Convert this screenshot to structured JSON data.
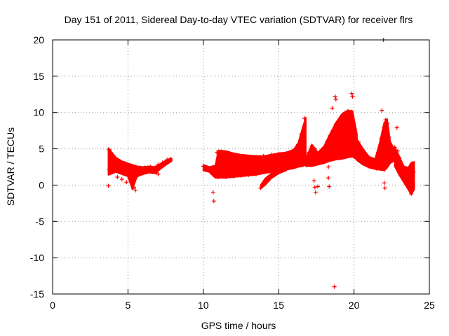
{
  "chart_data": {
    "type": "scatter",
    "title": "Day 151 of 2011, Sidereal Day-to-day VTEC variation (SDTVAR) for receiver flrs",
    "xlabel": "GPS time / hours",
    "ylabel": "SDTVAR / TECUs",
    "xlim": [
      0,
      25
    ],
    "ylim": [
      -15,
      20
    ],
    "xticks": [
      0,
      5,
      10,
      15,
      20,
      25
    ],
    "yticks": [
      -15,
      -10,
      -5,
      0,
      5,
      10,
      15,
      20
    ],
    "xtick_labels": [
      "0",
      "5",
      "10",
      "15",
      "20",
      "25"
    ],
    "ytick_labels": [
      "-15",
      "-10",
      "-5",
      "0",
      "5",
      "10",
      "15",
      "20"
    ],
    "grid": true,
    "marker": "+",
    "marker_color": "#ff0000",
    "series": [
      {
        "name": "SDTVAR",
        "points": [
          [
            3.75,
            4.9
          ],
          [
            3.85,
            4.5
          ],
          [
            4.0,
            3.8
          ],
          [
            4.2,
            3.4
          ],
          [
            4.5,
            3.2
          ],
          [
            4.8,
            3.0
          ],
          [
            5.0,
            2.8
          ],
          [
            5.2,
            2.6
          ],
          [
            5.5,
            2.5
          ],
          [
            5.8,
            2.4
          ],
          [
            6.1,
            2.4
          ],
          [
            6.5,
            2.5
          ],
          [
            6.8,
            2.4
          ],
          [
            7.0,
            2.8
          ],
          [
            7.3,
            3.1
          ],
          [
            7.6,
            3.5
          ],
          [
            7.8,
            3.6
          ],
          [
            3.75,
            2.2
          ],
          [
            3.9,
            2.0
          ],
          [
            4.1,
            2.0
          ],
          [
            4.4,
            1.9
          ],
          [
            4.7,
            1.6
          ],
          [
            5.0,
            1.4
          ],
          [
            5.2,
            0.6
          ],
          [
            5.4,
            -0.3
          ],
          [
            5.5,
            -0.7
          ],
          [
            5.6,
            1.2
          ],
          [
            5.9,
            1.6
          ],
          [
            6.2,
            1.8
          ],
          [
            6.6,
            1.8
          ],
          [
            6.9,
            1.7
          ],
          [
            7.0,
            1.5
          ],
          [
            3.7,
            -0.1
          ],
          [
            4.3,
            1.1
          ],
          [
            4.6,
            0.8
          ],
          [
            4.9,
            0.4
          ],
          [
            5.1,
            0.9
          ],
          [
            5.3,
            1.5
          ],
          [
            10.0,
            2.6
          ],
          [
            10.2,
            2.3
          ],
          [
            10.4,
            2.0
          ],
          [
            10.6,
            1.5
          ],
          [
            10.65,
            -1.0
          ],
          [
            10.7,
            -2.2
          ],
          [
            10.8,
            1.2
          ],
          [
            11.0,
            1.1
          ],
          [
            11.5,
            1.1
          ],
          [
            12.0,
            1.2
          ],
          [
            12.5,
            1.3
          ],
          [
            13.0,
            1.4
          ],
          [
            13.5,
            1.5
          ],
          [
            10.9,
            4.5
          ],
          [
            11.2,
            4.6
          ],
          [
            11.5,
            4.3
          ],
          [
            12.0,
            4.2
          ],
          [
            12.5,
            4.0
          ],
          [
            13.0,
            3.9
          ],
          [
            13.5,
            3.9
          ],
          [
            14.0,
            4.0
          ],
          [
            14.5,
            4.2
          ],
          [
            15.0,
            4.3
          ],
          [
            15.5,
            4.4
          ],
          [
            16.0,
            4.8
          ],
          [
            16.3,
            5.6
          ],
          [
            16.5,
            7.0
          ],
          [
            16.7,
            9.2
          ],
          [
            11.0,
            2.9
          ],
          [
            11.5,
            2.7
          ],
          [
            12.0,
            2.6
          ],
          [
            12.5,
            2.6
          ],
          [
            13.0,
            2.5
          ],
          [
            13.5,
            2.4
          ],
          [
            14.0,
            2.4
          ],
          [
            14.5,
            2.5
          ],
          [
            15.0,
            2.6
          ],
          [
            15.5,
            2.8
          ],
          [
            16.0,
            2.9
          ],
          [
            16.5,
            3.0
          ],
          [
            17.0,
            3.1
          ],
          [
            13.8,
            -0.4
          ],
          [
            14.0,
            0.2
          ],
          [
            14.2,
            0.7
          ],
          [
            14.5,
            1.2
          ],
          [
            14.8,
            1.6
          ],
          [
            15.0,
            1.9
          ],
          [
            15.3,
            2.1
          ],
          [
            16.8,
            3.5
          ],
          [
            17.0,
            4.5
          ],
          [
            17.2,
            5.4
          ],
          [
            17.4,
            5.0
          ],
          [
            17.5,
            4.4
          ],
          [
            17.6,
            3.8
          ],
          [
            17.35,
            0.6
          ],
          [
            17.4,
            -0.3
          ],
          [
            17.45,
            -1.0
          ],
          [
            17.6,
            -0.2
          ],
          [
            17.8,
            4.4
          ],
          [
            18.0,
            5.2
          ],
          [
            18.2,
            6.0
          ],
          [
            18.4,
            6.8
          ],
          [
            18.6,
            7.5
          ],
          [
            18.8,
            8.4
          ],
          [
            19.0,
            8.9
          ],
          [
            19.2,
            9.6
          ],
          [
            19.4,
            10.0
          ],
          [
            19.6,
            10.2
          ],
          [
            19.8,
            10.1
          ],
          [
            18.0,
            3.3
          ],
          [
            18.3,
            3.6
          ],
          [
            18.6,
            3.8
          ],
          [
            19.0,
            3.9
          ],
          [
            19.4,
            4.1
          ],
          [
            19.8,
            4.2
          ],
          [
            20.0,
            4.1
          ],
          [
            18.5,
            5.2
          ],
          [
            18.8,
            5.8
          ],
          [
            19.1,
            6.3
          ],
          [
            19.4,
            6.6
          ],
          [
            19.7,
            6.2
          ],
          [
            20.0,
            5.6
          ],
          [
            18.55,
            10.6
          ],
          [
            18.75,
            12.2
          ],
          [
            18.8,
            11.8
          ],
          [
            19.85,
            12.6
          ],
          [
            19.9,
            12.2
          ],
          [
            18.7,
            -14.0
          ],
          [
            18.3,
            2.5
          ],
          [
            18.3,
            1.0
          ],
          [
            18.35,
            -0.2
          ],
          [
            20.0,
            6.8
          ],
          [
            20.3,
            5.9
          ],
          [
            20.6,
            4.8
          ],
          [
            21.0,
            3.8
          ],
          [
            21.3,
            3.2
          ],
          [
            21.6,
            4.5
          ],
          [
            21.8,
            6.4
          ],
          [
            22.0,
            8.0
          ],
          [
            22.1,
            9.0
          ],
          [
            22.2,
            8.5
          ],
          [
            22.3,
            6.6
          ],
          [
            22.5,
            4.8
          ],
          [
            22.7,
            3.6
          ],
          [
            20.2,
            3.6
          ],
          [
            20.6,
            3.0
          ],
          [
            21.0,
            2.6
          ],
          [
            21.5,
            2.3
          ],
          [
            22.0,
            2.1
          ],
          [
            22.0,
            0.3
          ],
          [
            22.05,
            -0.4
          ],
          [
            21.85,
            10.3
          ],
          [
            21.95,
            20.0
          ],
          [
            22.85,
            7.9
          ],
          [
            22.7,
            5.2
          ],
          [
            22.9,
            4.7
          ],
          [
            23.0,
            3.8
          ],
          [
            23.2,
            2.8
          ],
          [
            23.4,
            1.8
          ],
          [
            23.5,
            1.0
          ],
          [
            23.6,
            0.2
          ],
          [
            23.7,
            -0.6
          ],
          [
            23.8,
            -1.2
          ],
          [
            23.9,
            -0.4
          ],
          [
            23.0,
            2.0
          ],
          [
            23.2,
            1.3
          ],
          [
            23.4,
            0.6
          ],
          [
            23.6,
            1.6
          ],
          [
            23.8,
            2.6
          ],
          [
            23.9,
            3.0
          ],
          [
            23.95,
            1.8
          ]
        ]
      }
    ],
    "bands": [
      {
        "x": [
          3.7,
          4.2,
          4.6,
          5.0,
          5.3,
          5.6,
          6.0,
          6.4,
          6.8,
          7.2,
          7.6,
          7.9
        ],
        "lo": [
          1.4,
          1.8,
          1.5,
          1.2,
          -0.6,
          1.2,
          1.5,
          1.7,
          1.6,
          2.3,
          2.9,
          3.3
        ],
        "hi": [
          5.1,
          3.8,
          3.3,
          3.0,
          2.8,
          2.6,
          2.5,
          2.6,
          2.5,
          3.0,
          3.5,
          3.7
        ]
      },
      {
        "x": [
          10.0,
          10.4,
          10.8,
          11.0,
          11.5,
          12.0,
          12.5,
          13.0,
          13.5,
          14.0,
          14.5,
          15.0,
          15.5,
          16.0,
          16.3,
          16.6,
          16.8
        ],
        "lo": [
          2.0,
          1.8,
          1.0,
          1.0,
          1.0,
          1.1,
          1.2,
          1.3,
          1.4,
          1.6,
          1.8,
          2.0,
          2.1,
          2.3,
          2.5,
          2.6,
          2.8
        ],
        "hi": [
          2.8,
          2.5,
          2.7,
          4.8,
          4.7,
          4.4,
          4.2,
          4.1,
          4.0,
          4.0,
          4.2,
          4.4,
          4.5,
          4.9,
          5.8,
          8.0,
          9.3
        ]
      },
      {
        "x": [
          13.8,
          14.1,
          14.5,
          15.0,
          15.5
        ],
        "lo": [
          -0.5,
          0.0,
          0.9,
          1.6,
          2.0
        ],
        "hi": [
          0.0,
          0.9,
          1.6,
          2.3,
          2.6
        ]
      },
      {
        "x": [
          16.8,
          17.2,
          17.6,
          18.0,
          18.4,
          18.8,
          19.2,
          19.6,
          19.9,
          20.2
        ],
        "lo": [
          2.6,
          2.6,
          2.8,
          3.0,
          3.3,
          3.5,
          3.6,
          3.8,
          3.9,
          3.5
        ],
        "hi": [
          3.6,
          5.6,
          4.5,
          5.3,
          7.0,
          8.6,
          9.8,
          10.3,
          10.2,
          7.0
        ]
      },
      {
        "x": [
          20.2,
          20.6,
          21.0,
          21.4,
          21.7,
          22.0,
          22.2,
          22.4,
          22.7
        ],
        "lo": [
          3.4,
          2.8,
          2.4,
          2.2,
          2.1,
          2.0,
          2.4,
          3.0,
          3.4
        ],
        "hi": [
          6.3,
          5.0,
          3.9,
          3.6,
          5.8,
          8.6,
          9.1,
          6.0,
          4.8
        ]
      },
      {
        "x": [
          22.7,
          23.0,
          23.3,
          23.6,
          23.8,
          24.0
        ],
        "lo": [
          2.6,
          1.4,
          0.4,
          -0.6,
          -1.3,
          -0.6
        ],
        "hi": [
          5.3,
          4.0,
          2.6,
          2.4,
          3.1,
          3.2
        ]
      }
    ]
  }
}
